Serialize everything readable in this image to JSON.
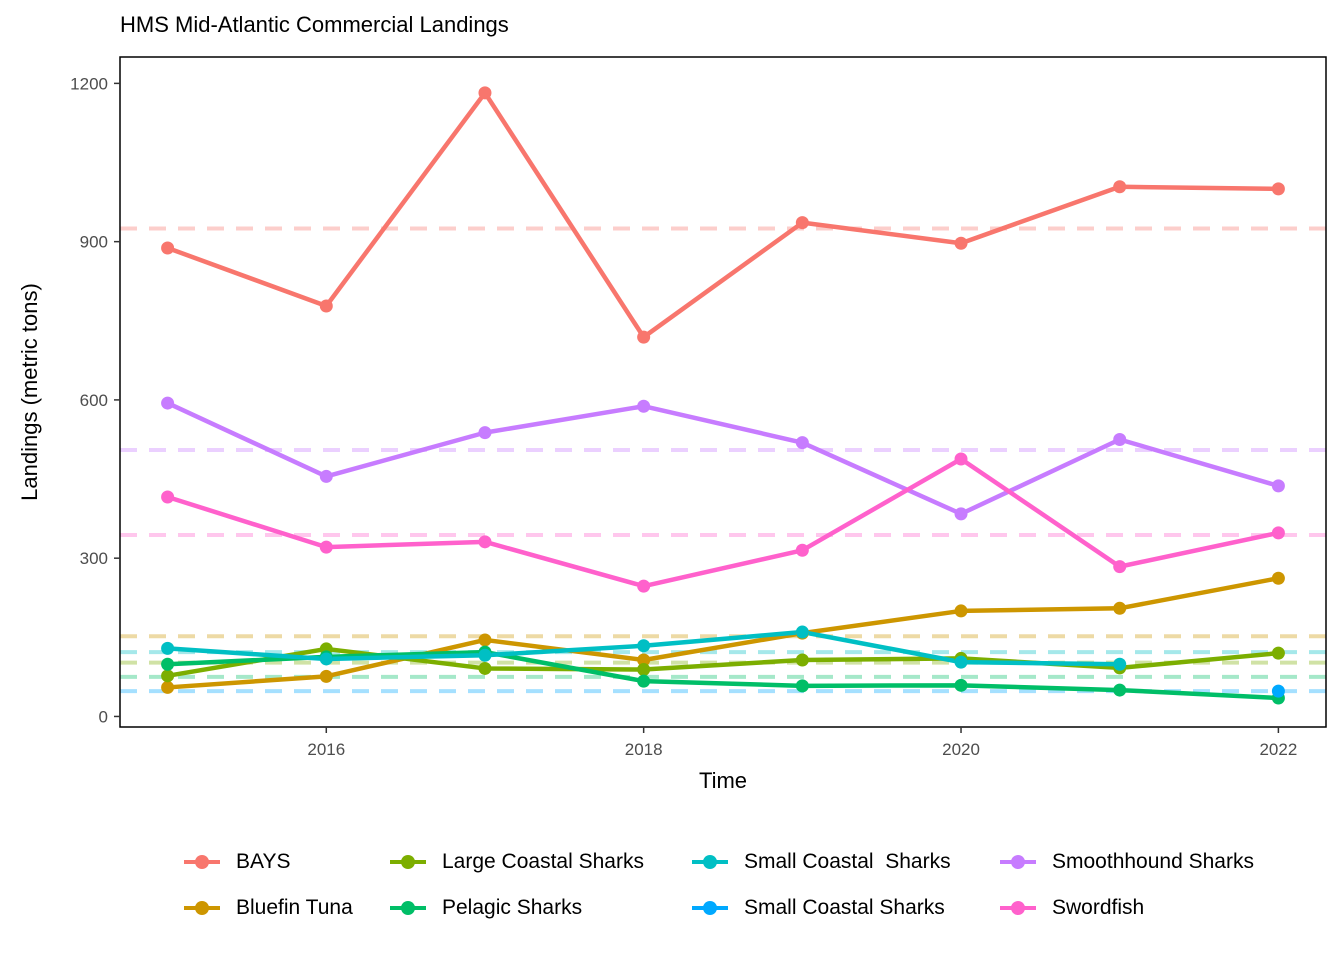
{
  "chart_data": {
    "type": "line",
    "title": "HMS Mid-Atlantic Commercial Landings",
    "xlabel": "Time",
    "ylabel": "Landings (metric tons)",
    "xlim": [
      2014.7,
      2022.3
    ],
    "ylim": [
      -20,
      1250
    ],
    "x_ticks": [
      2016,
      2018,
      2020,
      2022
    ],
    "y_ticks": [
      0,
      300,
      600,
      900,
      1200
    ],
    "grid": false,
    "legend_position": "bottom",
    "series": [
      {
        "name": "BAYS",
        "color": "#F8766D",
        "mean": 925,
        "x": [
          2015,
          2016,
          2017,
          2018,
          2019,
          2020,
          2021,
          2022
        ],
        "values": [
          888,
          778,
          1182,
          719,
          936,
          897,
          1004,
          1000
        ]
      },
      {
        "name": "Bluefin Tuna",
        "color": "#CD9600",
        "mean": 152,
        "x": [
          2015,
          2016,
          2017,
          2018,
          2019,
          2020,
          2021,
          2022
        ],
        "values": [
          55,
          76,
          145,
          107,
          158,
          200,
          205,
          262
        ]
      },
      {
        "name": "Large Coastal Sharks",
        "color": "#7CAE00",
        "mean": 102,
        "x": [
          2015,
          2016,
          2017,
          2018,
          2019,
          2020,
          2021,
          2022
        ],
        "values": [
          77,
          128,
          91,
          89,
          107,
          110,
          92,
          120
        ]
      },
      {
        "name": "Pelagic Sharks",
        "color": "#00BE67",
        "mean": 75,
        "x": [
          2015,
          2016,
          2017,
          2018,
          2019,
          2020,
          2021,
          2022
        ],
        "values": [
          99,
          113,
          122,
          67,
          58,
          59,
          50,
          35
        ]
      },
      {
        "name": "Small Coastal  Sharks",
        "color": "#00BFC4",
        "mean": 122,
        "x": [
          2015,
          2016,
          2017,
          2018,
          2019,
          2020,
          2021
        ],
        "values": [
          129,
          109,
          116,
          134,
          160,
          103,
          99
        ]
      },
      {
        "name": "Small Coastal Sharks",
        "color": "#00A9FF",
        "mean": 48,
        "x": [
          2022
        ],
        "values": [
          48
        ]
      },
      {
        "name": "Smoothhound Sharks",
        "color": "#C77CFF",
        "mean": 505,
        "x": [
          2015,
          2016,
          2017,
          2018,
          2019,
          2020,
          2021,
          2022
        ],
        "values": [
          594,
          455,
          538,
          588,
          519,
          384,
          525,
          437
        ]
      },
      {
        "name": "Swordfish",
        "color": "#FF61CC",
        "mean": 344,
        "x": [
          2015,
          2016,
          2017,
          2018,
          2019,
          2020,
          2021,
          2022
        ],
        "values": [
          416,
          321,
          331,
          247,
          315,
          488,
          284,
          348
        ]
      }
    ]
  }
}
